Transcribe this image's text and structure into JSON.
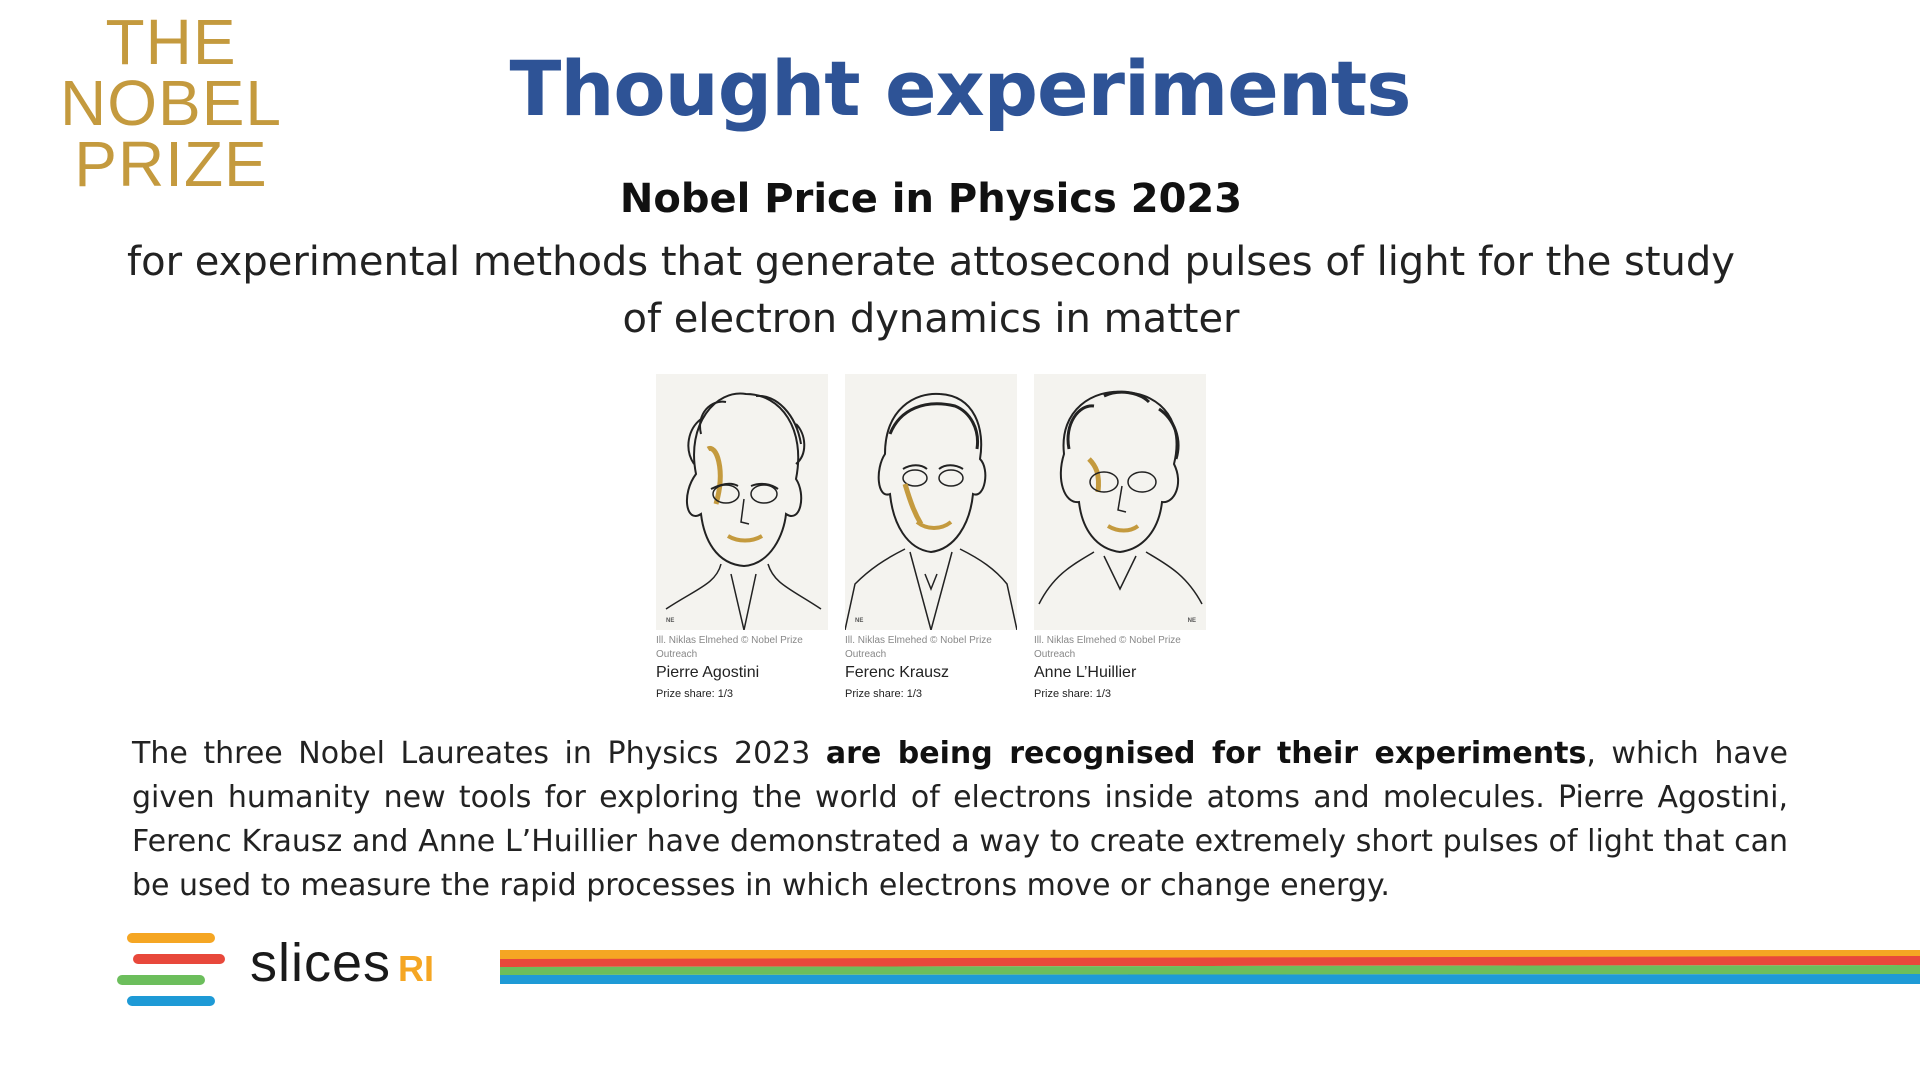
{
  "logo": {
    "lines": [
      "THE",
      "NOBEL",
      "PRIZE"
    ],
    "color": "#C49A3E"
  },
  "title": "Thought experiments",
  "subtitle": "Nobel Price in Physics 2023",
  "motivation": "for experimental methods that generate attosecond pulses of light for the study of electron dynamics in matter",
  "laureates": [
    {
      "credit": "Ill. Niklas Elmehed © Nobel Prize Outreach",
      "name": "Pierre Agostini",
      "share": "Prize share: 1/3"
    },
    {
      "credit": "Ill. Niklas Elmehed © Nobel Prize Outreach",
      "name": "Ferenc Krausz",
      "share": "Prize share: 1/3"
    },
    {
      "credit": "Ill. Niklas Elmehed © Nobel Prize Outreach",
      "name": "Anne L’Huillier",
      "share": "Prize share: 1/3"
    }
  ],
  "body": {
    "part1": "The three Nobel Laureates in Physics 2023 ",
    "bold": "are being recognised for their experiments",
    "part2": ", which have given humanity new tools for exploring the world of electrons inside atoms and molecules. Pierre Agostini, Ferenc Krausz and Anne L’Huillier have demonstrated a way to create extremely short pulses of light that can be used to measure the rapid processes in which electrons move or change energy."
  },
  "footer": {
    "brand": "slices",
    "brand_suffix": "RI",
    "colors": {
      "orange": "#F5A623",
      "red": "#E8483B",
      "green": "#6CBE5C",
      "blue": "#1E9AD6"
    }
  },
  "colors": {
    "title": "#2E5396",
    "gold": "#C49A3E"
  }
}
